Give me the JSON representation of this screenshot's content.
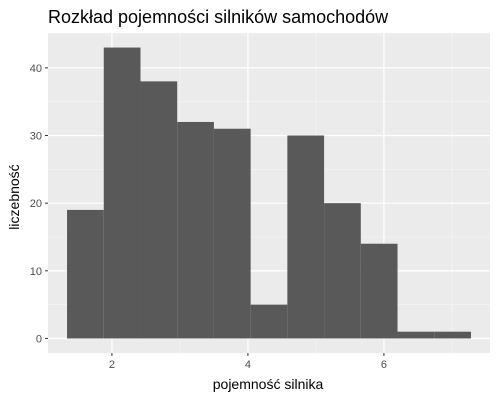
{
  "chart_data": {
    "type": "bar",
    "title": "Rozkład pojemności silników samochodów",
    "xlabel": "pojemność silnika",
    "ylabel": "liczebność",
    "bin_edges": [
      1.34,
      1.88,
      2.42,
      2.96,
      3.5,
      4.04,
      4.58,
      5.12,
      5.66,
      6.2,
      6.74,
      7.28
    ],
    "values": [
      19,
      43,
      38,
      32,
      31,
      5,
      30,
      20,
      14,
      1,
      1
    ],
    "xlim": [
      1.06,
      7.56
    ],
    "ylim": [
      -2.15,
      45.15
    ],
    "x_ticks": [
      2,
      4,
      6
    ],
    "x_tick_labels": [
      "2",
      "4",
      "6"
    ],
    "y_ticks": [
      0,
      10,
      20,
      30,
      40
    ],
    "y_tick_labels": [
      "0",
      "10",
      "20",
      "30",
      "40"
    ],
    "grid": true,
    "colors": {
      "panel_background": "#ebebeb",
      "grid_major": "#ffffff",
      "grid_minor": "#f5f5f5",
      "bar_fill": "#595959"
    }
  }
}
